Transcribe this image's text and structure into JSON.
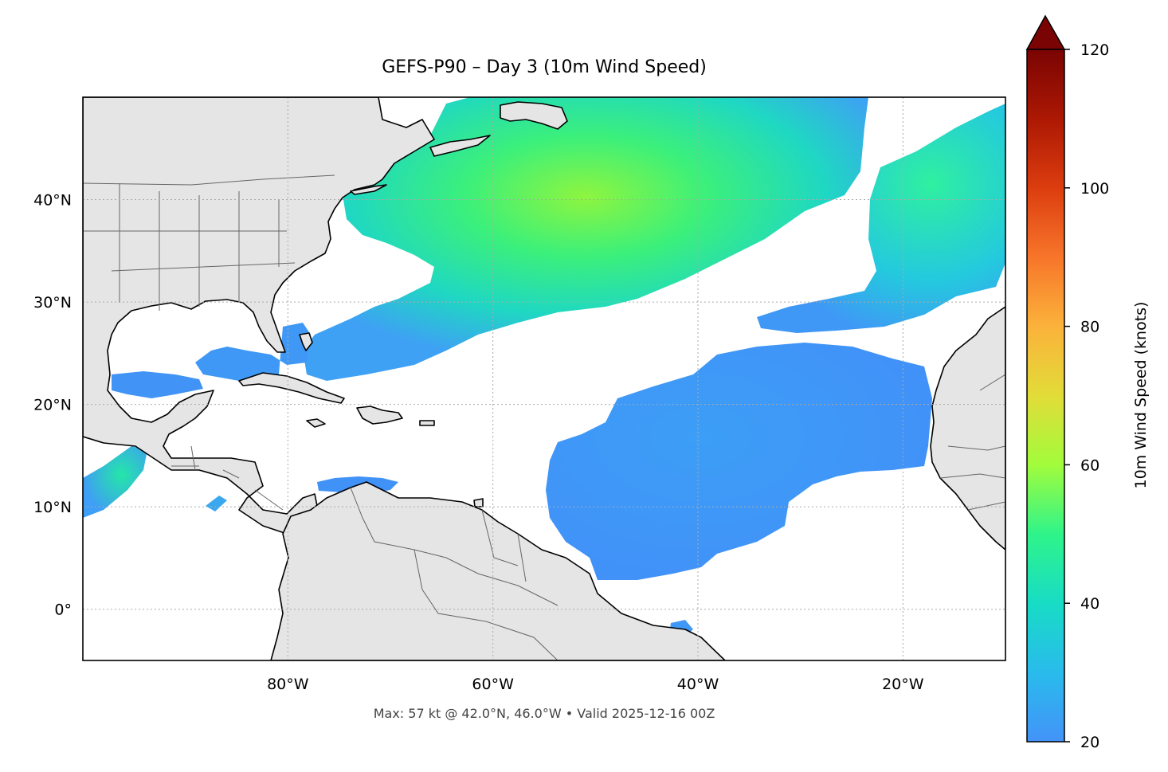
{
  "title": "GEFS-P90 – Day 3 (10m Wind Speed)",
  "footnote": "Max: 57 kt @ 42.0°N, 46.0°W • Valid 2025-12-16 00Z",
  "map": {
    "extent": {
      "lon_min": -100,
      "lon_max": -10,
      "lat_min": -5,
      "lat_max": 50
    },
    "lat_ticks": [
      {
        "value": 40,
        "label": "40°N"
      },
      {
        "value": 30,
        "label": "30°N"
      },
      {
        "value": 20,
        "label": "20°N"
      },
      {
        "value": 10,
        "label": "10°N"
      },
      {
        "value": 0,
        "label": "0°"
      }
    ],
    "lon_ticks": [
      {
        "value": -80,
        "label": "80°W"
      },
      {
        "value": -60,
        "label": "60°W"
      },
      {
        "value": -40,
        "label": "40°W"
      },
      {
        "value": -20,
        "label": "20°W"
      }
    ],
    "gridlines": "dotted",
    "land_color": "#e5e5e5",
    "ocean_color": "#ffffff",
    "coastline_color": "#000000",
    "border_color": "#666666"
  },
  "colorbar": {
    "label": "10m Wind Speed (knots)",
    "min": 20,
    "max": 120,
    "extend": "max",
    "ticks": [
      "20",
      "40",
      "60",
      "80",
      "100",
      "120"
    ],
    "tick_values": [
      20,
      40,
      60,
      80,
      100,
      120
    ],
    "colormap": "turbo",
    "stops": [
      "#4393f8",
      "#29bbec",
      "#18dcc5",
      "#2ff48a",
      "#a2fc3c",
      "#e2dc38",
      "#fbb23b",
      "#f7752a",
      "#dc3d0f",
      "#ac1804",
      "#7a0403"
    ]
  },
  "wind_fields": [
    {
      "region": "north-atlantic-main",
      "peak_kt": 57,
      "peak_lat": 42.0,
      "peak_lon": -46.0
    },
    {
      "region": "eastern-atlantic-north",
      "peak_kt": 38,
      "peak_lat": 37.0,
      "peak_lon": -14.0
    },
    {
      "region": "central-atlantic-trades",
      "peak_kt": 27,
      "peak_lat": 17.0,
      "peak_lon": -40.0
    },
    {
      "region": "eastern-pacific",
      "peak_kt": 37,
      "peak_lat": 15.0,
      "peak_lon": -96.0
    }
  ]
}
